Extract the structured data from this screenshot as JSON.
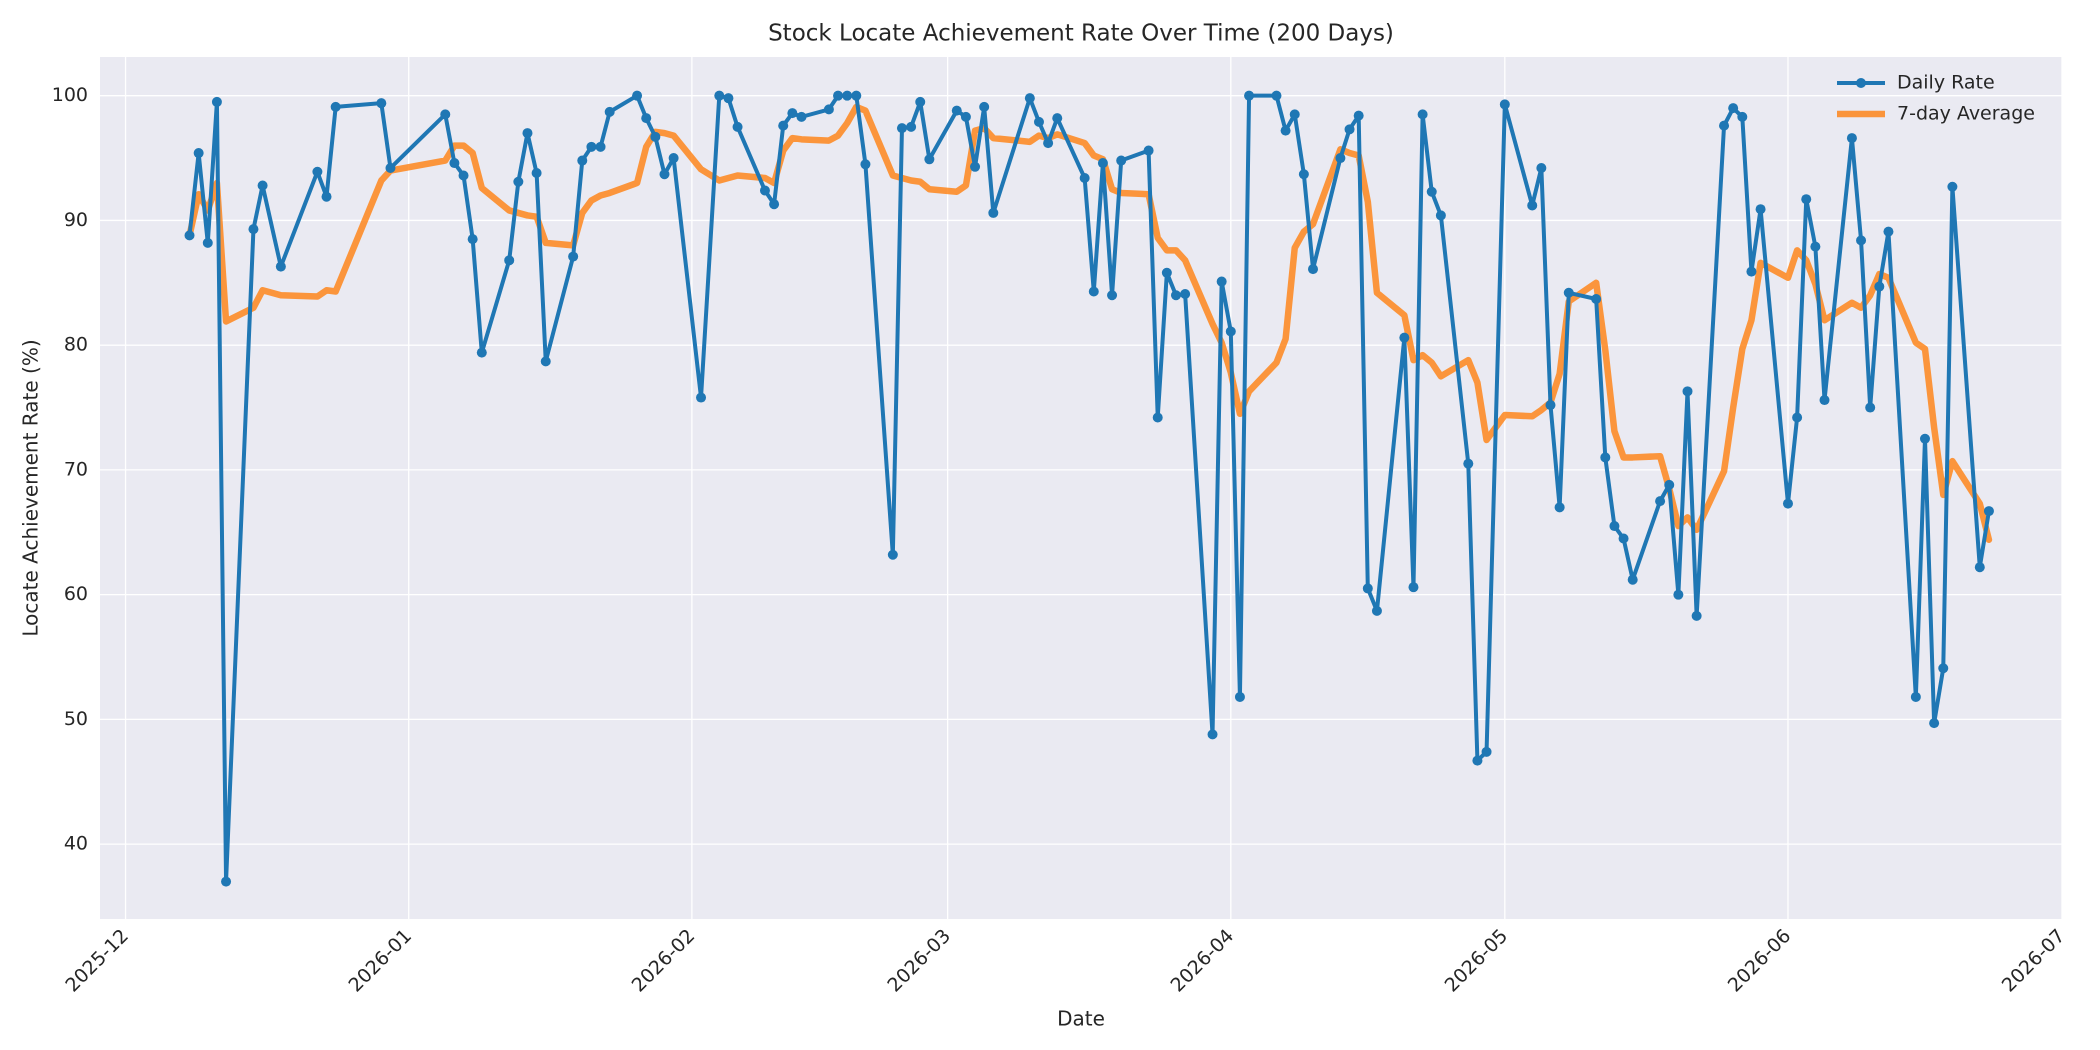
{
  "chart_data": {
    "type": "line",
    "title": "Stock Locate Achievement Rate Over Time (200 Days)",
    "xlabel": "Date",
    "ylabel": "Locate Achievement Rate (%)",
    "x": [
      7,
      8,
      9,
      10,
      11,
      14,
      15,
      17,
      21,
      22,
      23,
      28,
      29,
      35,
      36,
      37,
      38,
      39,
      42,
      43,
      44,
      45,
      46,
      49,
      50,
      51,
      52,
      53,
      56,
      57,
      58,
      59,
      60,
      63,
      65,
      66,
      67,
      70,
      71,
      72,
      73,
      74,
      77,
      78,
      79,
      80,
      81,
      84,
      85,
      86,
      87,
      88,
      91,
      92,
      93,
      94,
      95,
      99,
      100,
      101,
      102,
      105,
      106,
      107,
      108,
      109,
      112,
      113,
      114,
      115,
      116,
      119,
      120,
      121,
      122,
      123,
      126,
      127,
      128,
      129,
      130,
      133,
      134,
      135,
      136,
      137,
      140,
      141,
      142,
      143,
      144,
      147,
      148,
      149,
      151,
      154,
      155,
      156,
      157,
      158,
      161,
      162,
      163,
      164,
      165,
      168,
      169,
      170,
      171,
      172,
      175,
      176,
      177,
      178,
      179,
      182,
      183,
      184,
      185,
      186,
      189,
      190,
      191,
      192,
      193,
      196,
      197,
      198,
      199,
      200,
      203,
      204
    ],
    "series": [
      {
        "name": "Daily Rate",
        "color": "#1f77b4",
        "marker": true,
        "values": [
          88.8,
          95.4,
          88.2,
          99.5,
          37.0,
          89.3,
          92.8,
          86.3,
          93.9,
          91.9,
          99.1,
          99.4,
          94.2,
          98.5,
          94.6,
          93.6,
          88.5,
          79.4,
          86.8,
          93.1,
          97.0,
          93.8,
          78.7,
          87.1,
          94.8,
          95.9,
          95.9,
          98.7,
          100,
          98.2,
          96.7,
          93.7,
          95.0,
          75.8,
          100,
          99.8,
          97.5,
          92.4,
          91.3,
          97.6,
          98.6,
          98.3,
          98.9,
          100,
          100,
          100,
          94.5,
          63.2,
          97.4,
          97.5,
          99.5,
          94.9,
          98.8,
          98.3,
          94.3,
          99.1,
          90.6,
          99.8,
          97.9,
          96.2,
          98.2,
          93.4,
          84.3,
          94.6,
          84.0,
          94.8,
          95.6,
          74.2,
          85.8,
          84.0,
          84.1,
          48.8,
          85.1,
          81.1,
          51.8,
          100,
          100,
          97.2,
          98.5,
          93.7,
          86.1,
          95.0,
          97.3,
          98.4,
          60.5,
          58.7,
          80.6,
          60.6,
          98.5,
          92.3,
          90.4,
          70.5,
          46.7,
          47.4,
          99.3,
          91.2,
          94.2,
          75.2,
          67.0,
          84.2,
          83.7,
          71.0,
          65.5,
          64.5,
          61.2,
          67.5,
          68.8,
          60.0,
          76.3,
          58.3,
          97.6,
          99.0,
          98.3,
          85.9,
          90.9,
          67.3,
          74.2,
          91.7,
          87.9,
          75.6,
          96.6,
          88.4,
          75.0,
          84.7,
          89.1,
          51.8,
          72.5,
          49.7,
          54.1,
          92.7,
          62.2,
          66.7
        ]
      },
      {
        "name": "7-day Average",
        "color": "#ff7f0e",
        "marker": false,
        "values": [
          88.8,
          92.1,
          90.8,
          93.0,
          81.9,
          83.0,
          84.4,
          84.0,
          83.9,
          84.4,
          84.3,
          93.2,
          94.0,
          94.8,
          96.0,
          96.0,
          95.4,
          92.6,
          90.8,
          90.6,
          90.4,
          90.3,
          88.2,
          88.0,
          90.6,
          91.6,
          92.0,
          92.2,
          93.0,
          95.9,
          97.1,
          97.0,
          96.8,
          94.1,
          93.2,
          93.4,
          93.6,
          93.4,
          93.0,
          95.6,
          96.6,
          96.5,
          96.4,
          96.8,
          97.8,
          99.1,
          98.8,
          93.6,
          93.4,
          93.2,
          93.1,
          92.5,
          92.3,
          92.8,
          97.2,
          97.4,
          96.6,
          96.3,
          96.8,
          96.6,
          96.9,
          96.2,
          95.2,
          94.9,
          92.5,
          92.2,
          92.1,
          88.6,
          87.6,
          87.6,
          86.8,
          81.7,
          80.2,
          77.8,
          74.5,
          76.3,
          78.6,
          80.5,
          87.8,
          89.1,
          89.7,
          95.7,
          95.4,
          95.2,
          91.5,
          84.2,
          82.4,
          78.8,
          79.2,
          78.6,
          77.5,
          78.8,
          77.0,
          72.4,
          74.4,
          74.3,
          74.8,
          75.4,
          77.7,
          83.5,
          85.0,
          79.6,
          73.1,
          71.0,
          71.0,
          71.1,
          68.5,
          65.5,
          66.2,
          65.2,
          69.9,
          75.0,
          79.7,
          82.0,
          86.6,
          85.4,
          87.6,
          86.8,
          84.9,
          82.0,
          83.4,
          83.0,
          84.0,
          85.7,
          85.4,
          80.2,
          79.7,
          73.4,
          68.0,
          70.7,
          67.3,
          64.4
        ]
      }
    ],
    "xlim": [
      -2.8,
      212
    ],
    "xticks": [
      {
        "value": 0,
        "label": "2025-12"
      },
      {
        "value": 31,
        "label": "2026-01"
      },
      {
        "value": 62,
        "label": "2026-02"
      },
      {
        "value": 90,
        "label": "2026-03"
      },
      {
        "value": 121,
        "label": "2026-04"
      },
      {
        "value": 151,
        "label": "2026-05"
      },
      {
        "value": 182,
        "label": "2026-06"
      },
      {
        "value": 212,
        "label": "2026-07"
      }
    ],
    "ylim": [
      34,
      103.1
    ],
    "yticks": [
      40,
      50,
      60,
      70,
      80,
      90,
      100
    ],
    "grid": true,
    "legend": "upper right"
  }
}
